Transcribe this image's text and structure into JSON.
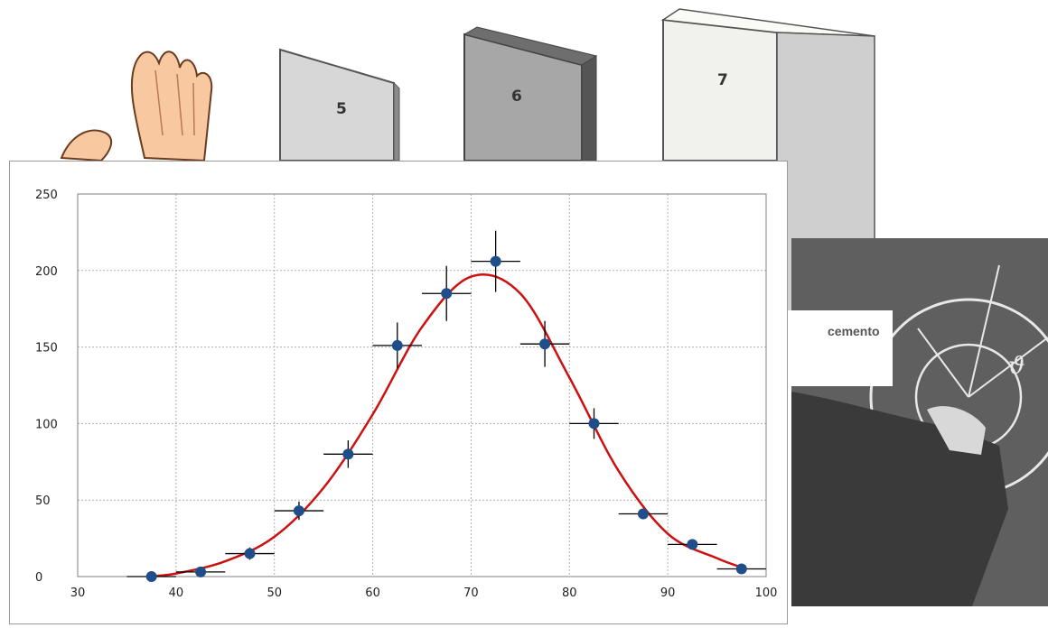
{
  "panels": [
    {
      "label": "5"
    },
    {
      "label": "6"
    },
    {
      "label": "7"
    }
  ],
  "photo_caption": "cemento",
  "colors": {
    "point": "#1f4e8a",
    "fit": "#cc1111",
    "error": "#000000",
    "grid": "#b0b0b0"
  },
  "chart_data": {
    "type": "scatter",
    "title": "",
    "xlabel": "",
    "ylabel": "",
    "xlim": [
      30,
      100
    ],
    "ylim": [
      0,
      250
    ],
    "xticks": [
      30,
      40,
      50,
      60,
      70,
      80,
      90,
      100
    ],
    "yticks": [
      0,
      50,
      100,
      150,
      200,
      250
    ],
    "grid": true,
    "series": [
      {
        "kind": "points_with_errors",
        "x": [
          37.5,
          42.5,
          47.5,
          52.5,
          57.5,
          62.5,
          67.5,
          72.5,
          77.5,
          82.5,
          87.5,
          92.5,
          97.5
        ],
        "y": [
          0,
          3,
          15,
          43,
          80,
          151,
          185,
          206,
          152,
          100,
          41,
          21,
          5
        ],
        "yerr": [
          0,
          2,
          4,
          6,
          9,
          15,
          18,
          20,
          15,
          10,
          0,
          0,
          0
        ],
        "xerr": 2.5
      },
      {
        "kind": "fit_curve",
        "x": [
          37,
          40,
          45,
          50,
          55,
          60,
          65,
          70,
          75,
          80,
          85,
          90,
          95,
          98
        ],
        "y": [
          0,
          2,
          10,
          26,
          58,
          106,
          163,
          196,
          185,
          130,
          69,
          28,
          12,
          5
        ]
      }
    ]
  }
}
